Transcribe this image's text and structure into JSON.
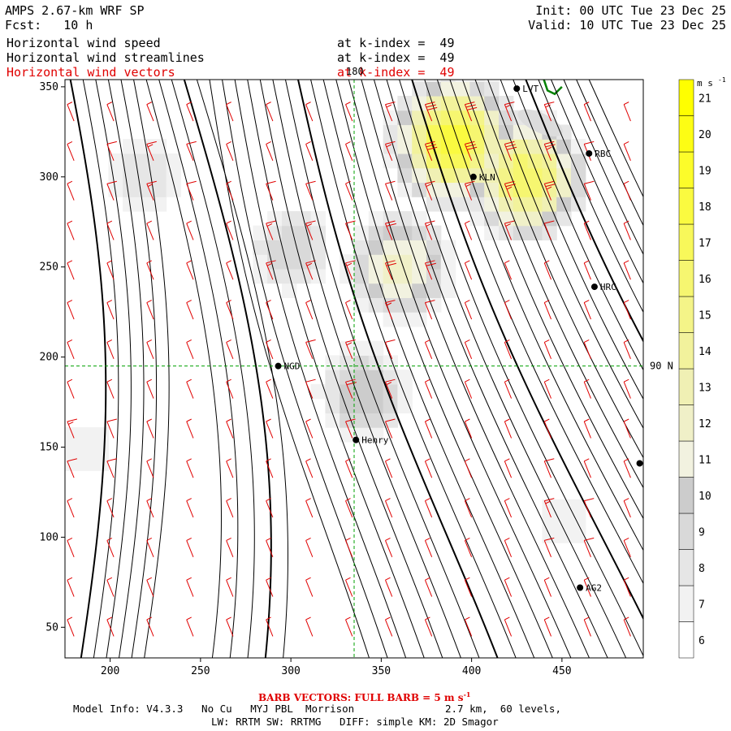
{
  "header": {
    "title": "AMPS 2.67-km WRF SP",
    "fcst": "Fcst:   10 h",
    "init": "Init: 00 UTC Tue 23 Dec 25",
    "valid": "Valid: 10 UTC Tue 23 Dec 25",
    "rows": [
      {
        "label": "Horizontal wind speed",
        "level": "at k-index =  49",
        "color": "#000000"
      },
      {
        "label": "Horizontal wind streamlines",
        "level": "at k-index =  49",
        "color": "#000000"
      },
      {
        "label": "Horizontal wind vectors",
        "level": "at k-index =  49",
        "color": "#e00000"
      }
    ]
  },
  "footer": {
    "barb_note": "BARB VECTORS:  FULL BARB = 5 m s",
    "barb_sup": "-1",
    "model_info": "Model Info: V4.3.3   No Cu   MYJ PBL  Morrison",
    "grid_info": "2.7 km,  60 levels,",
    "physics": "LW: RRTM SW: RRTMG   DIFF: simple KM: 2D Smagor"
  },
  "colors": {
    "barb": "#e00000",
    "streamline": "#000000",
    "grid": "#00a000",
    "coast": "#008000"
  },
  "chart_data": {
    "type": "heatmap",
    "title": "Horizontal wind speed / streamlines / vectors at k-index 49",
    "xlim": [
      175,
      495
    ],
    "ylim": [
      33,
      354
    ],
    "x_ticks": [
      200,
      250,
      300,
      350,
      400,
      450
    ],
    "y_ticks": [
      50,
      100,
      150,
      200,
      250,
      300,
      350
    ],
    "graticule": {
      "lon_label": "180",
      "lon_x": 335,
      "lat_label": "90 N",
      "lat_y": 195
    },
    "stations": [
      {
        "name": "LVT",
        "x": 425,
        "y": 349
      },
      {
        "name": "RBC",
        "x": 465,
        "y": 313
      },
      {
        "name": "KLN",
        "x": 401,
        "y": 300
      },
      {
        "name": "HRC",
        "x": 468,
        "y": 239
      },
      {
        "name": "NGD",
        "x": 293,
        "y": 195
      },
      {
        "name": "Henry",
        "x": 336,
        "y": 154
      },
      {
        "name": "",
        "x": 493,
        "y": 141
      },
      {
        "name": "AG2",
        "x": 460,
        "y": 72
      }
    ],
    "colorbar": {
      "unit": "m s",
      "unit_sup": "-1",
      "levels": [
        6,
        7,
        8,
        9,
        10,
        11,
        12,
        13,
        14,
        15,
        16,
        17,
        18,
        19,
        20,
        21
      ],
      "colors": [
        "#ffffff",
        "#f2f2f2",
        "#e6e6e6",
        "#d9d9d9",
        "#cccccc",
        "#f2f2e0",
        "#f0f0c8",
        "#f0f0b4",
        "#f2f29c",
        "#f4f488",
        "#f6f670",
        "#f8f85a",
        "#fafa40",
        "#fcfc2a",
        "#fdfd14",
        "#ffff00"
      ]
    },
    "speed_field": {
      "direction_deg": 22,
      "max_speed": 21,
      "centers": [
        {
          "x": 390,
          "y": 320,
          "speed": 19
        },
        {
          "x": 430,
          "y": 300,
          "speed": 17
        },
        {
          "x": 360,
          "y": 250,
          "speed": 13
        },
        {
          "x": 340,
          "y": 180,
          "speed": 11
        },
        {
          "x": 300,
          "y": 260,
          "speed": 10
        },
        {
          "x": 220,
          "y": 300,
          "speed": 9
        },
        {
          "x": 450,
          "y": 110,
          "speed": 8
        },
        {
          "x": 185,
          "y": 150,
          "speed": 8
        }
      ]
    }
  }
}
